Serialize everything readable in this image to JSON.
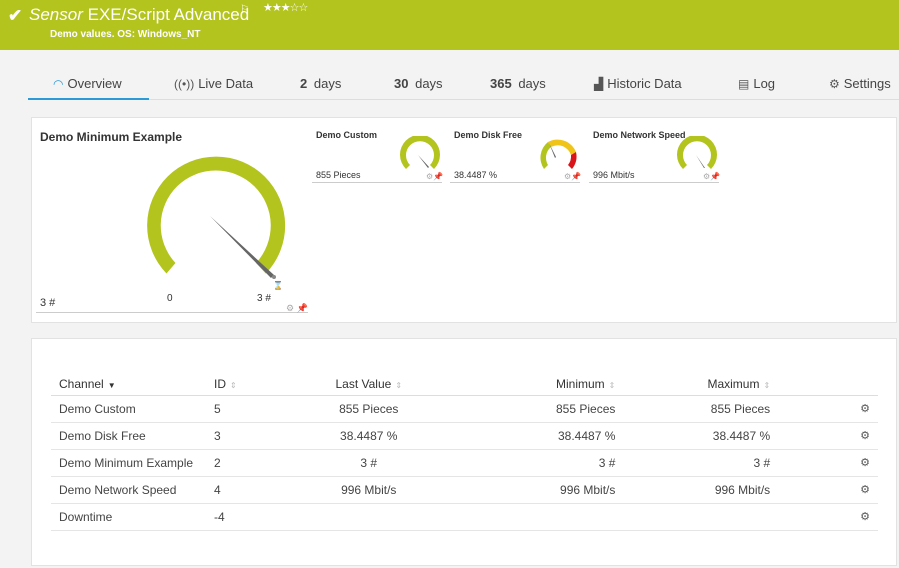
{
  "header": {
    "kind": "Sensor",
    "title": "EXE/Script Advanced",
    "flag_icon": "flag-icon",
    "stars": "★★★☆☆",
    "subtitle": "Demo values. OS: Windows_NT",
    "bg_color": "#b3c41f"
  },
  "tabs": [
    {
      "label": "Overview",
      "icon": "gauge-icon",
      "active": true
    },
    {
      "label": "Live Data",
      "icon": "live-icon"
    },
    {
      "bold": "2",
      "label": "days"
    },
    {
      "bold": "30",
      "label": "days"
    },
    {
      "bold": "365",
      "label": "days"
    },
    {
      "label": "Historic Data",
      "icon": "chart-icon"
    },
    {
      "label": "Log",
      "icon": "log-icon"
    },
    {
      "label": "Settings",
      "icon": "gear-icon"
    }
  ],
  "gauges": {
    "main": {
      "name": "Demo Minimum Example",
      "value": "3 #",
      "min": "0",
      "max": "3 #",
      "level": 1.0
    },
    "small": [
      {
        "name": "Demo Custom",
        "value": "855 Pieces",
        "level": 1.0
      },
      {
        "name": "Demo Disk Free",
        "value": "38.4487 %",
        "level": 0.38
      },
      {
        "name": "Demo Network Speed",
        "value": "996 Mbit/s",
        "level": 0.98
      }
    ]
  },
  "channels": {
    "headers": {
      "channel": "Channel",
      "id": "ID",
      "last": "Last Value",
      "min": "Minimum",
      "max": "Maximum"
    },
    "rows": [
      {
        "channel": "Demo Custom",
        "id": "5",
        "last": "855 Pieces",
        "min": "855 Pieces",
        "max": "855 Pieces"
      },
      {
        "channel": "Demo Disk Free",
        "id": "3",
        "last": "38.4487 %",
        "min": "38.4487 %",
        "max": "38.4487 %"
      },
      {
        "channel": "Demo Minimum Example",
        "id": "2",
        "last": "3 #",
        "min": "3 #",
        "max": "3 #"
      },
      {
        "channel": "Demo Network Speed",
        "id": "4",
        "last": "996 Mbit/s",
        "min": "996 Mbit/s",
        "max": "996 Mbit/s"
      },
      {
        "channel": "Downtime",
        "id": "-4",
        "last": "",
        "min": "",
        "max": ""
      }
    ]
  },
  "colors": {
    "gauge_green": "#b3c41f",
    "gauge_yellow": "#f0c419",
    "gauge_red": "#d9151b",
    "active_tab": "#2c9ad6"
  }
}
